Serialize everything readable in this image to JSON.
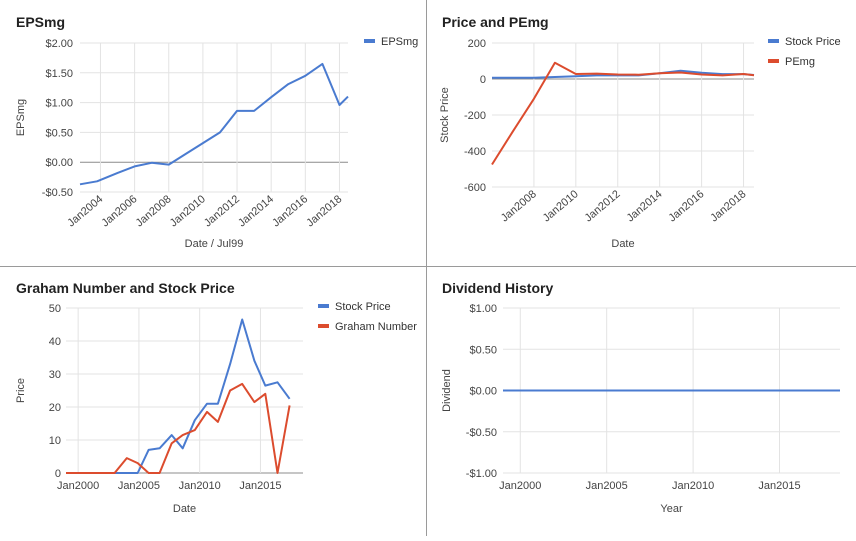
{
  "colors": {
    "blue": "#4a7bd0",
    "red": "#dc4c2e",
    "grid": "#e3e3e3",
    "zero": "#8c8c8c",
    "text": "#444444",
    "frame": "#9a9a9a"
  },
  "chart_data": [
    {
      "type": "line",
      "title": "EPSmg",
      "xlabel": "Date / Jul99",
      "ylabel": "EPSmg",
      "xlim": [
        2002.8,
        2018.5
      ],
      "ylim": [
        -0.5,
        2.0
      ],
      "x_ticks": [
        2004,
        2006,
        2008,
        2010,
        2012,
        2014,
        2016,
        2018
      ],
      "x_tick_labels": [
        "Jan2004",
        "Jan2006",
        "Jan2008",
        "Jan2010",
        "Jan2012",
        "Jan2014",
        "Jan2016",
        "Jan2018"
      ],
      "y_ticks": [
        -0.5,
        0,
        0.5,
        1.0,
        1.5,
        2.0
      ],
      "y_tick_labels": [
        "-$0.50",
        "$0.00",
        "$0.50",
        "$1.00",
        "$1.50",
        "$2.00"
      ],
      "series": [
        {
          "name": "EPSmg",
          "color": "blue",
          "x": [
            2002.8,
            2003.8,
            2005.0,
            2006.0,
            2007.0,
            2008.0,
            2009.0,
            2010.0,
            2011.0,
            2012.0,
            2013.0,
            2014.0,
            2015.0,
            2016.0,
            2017.0,
            2018.0,
            2018.5
          ],
          "y": [
            -0.37,
            -0.32,
            -0.18,
            -0.07,
            -0.01,
            -0.04,
            0.14,
            0.32,
            0.5,
            0.86,
            0.86,
            1.09,
            1.31,
            1.45,
            1.65,
            0.96,
            1.1
          ]
        }
      ]
    },
    {
      "type": "line",
      "title": "Price and PEmg",
      "xlabel": "Date",
      "ylabel": "Stock Price",
      "xlim": [
        2006.0,
        2018.5
      ],
      "ylim": [
        -600,
        200
      ],
      "x_ticks": [
        2008,
        2010,
        2012,
        2014,
        2016,
        2018
      ],
      "x_tick_labels": [
        "Jan2008",
        "Jan2010",
        "Jan2012",
        "Jan2014",
        "Jan2016",
        "Jan2018"
      ],
      "y_ticks": [
        -600,
        -400,
        -200,
        0,
        200
      ],
      "y_tick_labels": [
        "-600",
        "-400",
        "-200",
        "0",
        "200"
      ],
      "series": [
        {
          "name": "Stock Price",
          "color": "blue",
          "x": [
            2006.0,
            2008.0,
            2009.0,
            2010.0,
            2011.0,
            2012.0,
            2013.0,
            2014.0,
            2015.0,
            2016.0,
            2017.0,
            2018.0,
            2018.5
          ],
          "y": [
            7,
            7,
            11,
            15,
            20,
            20,
            20,
            32,
            46,
            35,
            27,
            27,
            22
          ]
        },
        {
          "name": "PEmg",
          "color": "red",
          "x": [
            2006.0,
            2007.0,
            2008.0,
            2009.0,
            2010.0,
            2011.0,
            2012.0,
            2013.0,
            2014.0,
            2015.0,
            2016.0,
            2017.0,
            2018.0,
            2018.5
          ],
          "y": [
            -475,
            -290,
            -110,
            90,
            28,
            30,
            25,
            24,
            32,
            36,
            25,
            20,
            28,
            21
          ]
        }
      ]
    },
    {
      "type": "line",
      "title": "Graham Number and Stock Price",
      "xlabel": "Date",
      "ylabel": "Price",
      "xlim": [
        1999.0,
        2018.5
      ],
      "ylim": [
        0,
        50
      ],
      "x_ticks": [
        2000,
        2005,
        2010,
        2015
      ],
      "x_tick_labels": [
        "Jan2000",
        "Jan2005",
        "Jan2010",
        "Jan2015"
      ],
      "y_ticks": [
        0,
        10,
        20,
        30,
        40,
        50
      ],
      "y_tick_labels": [
        "0",
        "10",
        "20",
        "30",
        "40",
        "50"
      ],
      "series": [
        {
          "name": "Stock Price",
          "color": "blue",
          "x": [
            1999.0,
            2004.9,
            2005.8,
            2006.7,
            2007.7,
            2008.6,
            2009.6,
            2010.6,
            2011.5,
            2012.5,
            2013.5,
            2014.5,
            2015.4,
            2016.4,
            2017.4
          ],
          "y": [
            0,
            0,
            7,
            7.5,
            11.5,
            7.5,
            16,
            21,
            21,
            33,
            46.5,
            34,
            26.5,
            27.5,
            22.5
          ]
        },
        {
          "name": "Graham Number",
          "color": "red",
          "x": [
            1999.0,
            2003.0,
            2004.0,
            2004.9,
            2005.8,
            2006.7,
            2007.7,
            2008.6,
            2009.6,
            2010.6,
            2011.5,
            2012.5,
            2013.5,
            2014.5,
            2015.4,
            2016.4,
            2017.4
          ],
          "y": [
            0,
            0,
            4.5,
            3,
            0,
            0,
            9,
            11.5,
            13,
            18.5,
            15.5,
            25,
            27,
            21.5,
            24,
            0,
            20.5
          ]
        }
      ]
    },
    {
      "type": "line",
      "title": "Dividend History",
      "xlabel": "Year",
      "ylabel": "Dividend",
      "xlim": [
        1999.0,
        2018.5
      ],
      "ylim": [
        -1.0,
        1.0
      ],
      "x_ticks": [
        2000,
        2005,
        2010,
        2015
      ],
      "x_tick_labels": [
        "Jan2000",
        "Jan2005",
        "Jan2010",
        "Jan2015"
      ],
      "y_ticks": [
        -1.0,
        -0.5,
        0,
        0.5,
        1.0
      ],
      "y_tick_labels": [
        "-$1.00",
        "-$0.50",
        "$0.00",
        "$0.50",
        "$1.00"
      ],
      "series": [
        {
          "name": "Dividend",
          "color": "blue",
          "x": [
            1999.0,
            2018.5
          ],
          "y": [
            0,
            0
          ]
        }
      ]
    }
  ]
}
